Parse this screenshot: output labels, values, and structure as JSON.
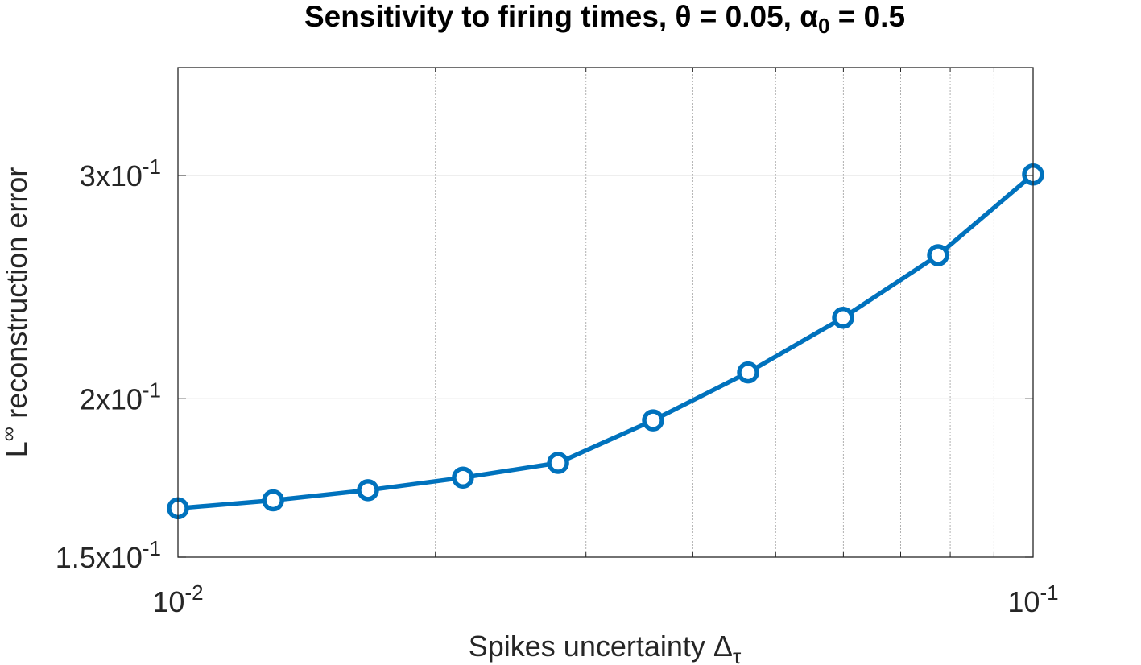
{
  "chart_data": {
    "type": "line",
    "title": "Sensitivity to firing times, θ = 0.05, α",
    "title_subscript": "0",
    "title_suffix": " = 0.5",
    "xlabel": "Spikes uncertainty Δ",
    "xlabel_subscript": "τ",
    "ylabel": "reconstruction error",
    "ylabel_prefix": "L",
    "ylabel_superscript": "∞",
    "xscale": "log",
    "yscale": "log",
    "xlim": [
      0.01,
      0.1
    ],
    "ylim": [
      0.15,
      0.365
    ],
    "grid": true,
    "x_ticks": [
      {
        "value": 0.01,
        "base": "10",
        "exp": "-2"
      },
      {
        "value": 0.1,
        "base": "10",
        "exp": "-1"
      }
    ],
    "y_ticks": [
      {
        "value": 0.15,
        "base": "1.5x10",
        "exp": "-1"
      },
      {
        "value": 0.2,
        "base": "2x10",
        "exp": "-1"
      },
      {
        "value": 0.3,
        "base": "3x10",
        "exp": "-1"
      }
    ],
    "series": [
      {
        "color": "#0072BD",
        "marker": "circle",
        "x": [
          0.01,
          0.01292,
          0.01668,
          0.02154,
          0.02783,
          0.03594,
          0.04642,
          0.05995,
          0.07743,
          0.1
        ],
        "y": [
          0.1639,
          0.1663,
          0.1694,
          0.1733,
          0.178,
          0.1923,
          0.2098,
          0.2317,
          0.2596,
          0.3006
        ]
      }
    ]
  }
}
